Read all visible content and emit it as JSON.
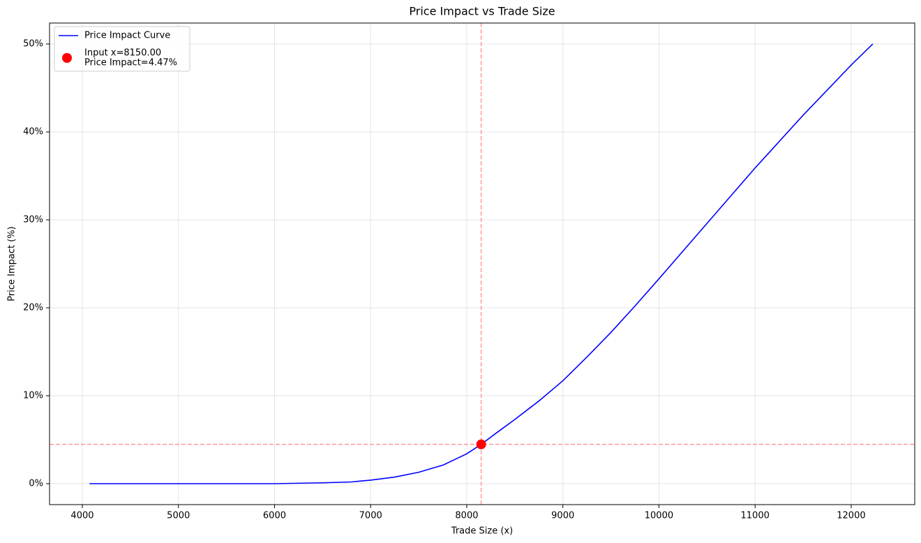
{
  "chart_data": {
    "type": "line",
    "title": "Price Impact vs Trade Size",
    "x_label": "Trade Size (x)",
    "y_label": "Price Impact (%)",
    "x": [
      4075,
      5000,
      6000,
      6500,
      6800,
      7000,
      7250,
      7500,
      7750,
      8000,
      8150,
      8300,
      8500,
      8750,
      9000,
      9250,
      9500,
      9750,
      10000,
      10500,
      11000,
      11500,
      12000,
      12225
    ],
    "series": [
      {
        "name": "Price Impact Curve",
        "color": "#0000ff",
        "values": [
          0,
          0,
          0,
          0.1,
          0.2,
          0.4,
          0.75,
          1.3,
          2.1,
          3.4,
          4.47,
          5.7,
          7.3,
          9.4,
          11.7,
          14.4,
          17.2,
          20.2,
          23.3,
          29.6,
          35.9,
          41.9,
          47.6,
          50
        ]
      },
      {
        "name": [
          "Input x=8150.00",
          "Price Impact=4.47%"
        ],
        "color": "#ff0000",
        "type": "scatter",
        "x": [
          8150
        ],
        "values": [
          4.47
        ],
        "guide_color": "#ff9999"
      }
    ],
    "xlim": [
      3659,
      12661
    ],
    "ylim": [
      -2.38,
      52.38
    ],
    "xticks": [
      4000,
      5000,
      6000,
      7000,
      8000,
      9000,
      10000,
      11000,
      12000
    ],
    "yticks": [
      {
        "value": 0,
        "label": "0%"
      },
      {
        "value": 10,
        "label": "10%"
      },
      {
        "value": 20,
        "label": "20%"
      },
      {
        "value": 30,
        "label": "30%"
      },
      {
        "value": 40,
        "label": "40%"
      },
      {
        "value": 50,
        "label": "50%"
      }
    ],
    "grid": true,
    "legend": "upper left"
  }
}
